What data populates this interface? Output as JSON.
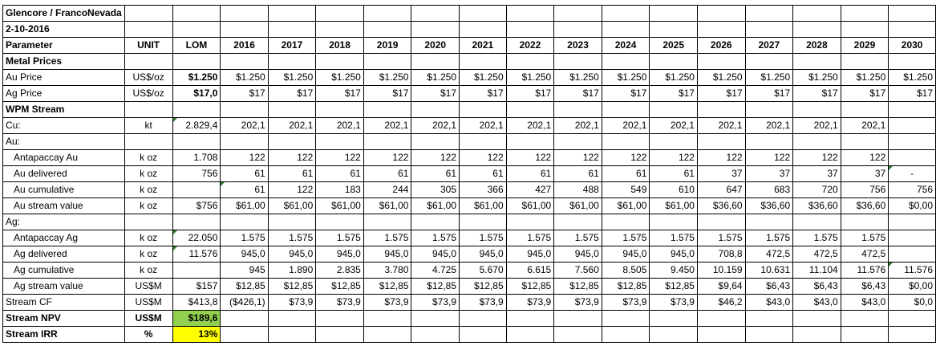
{
  "title": "Glencore / FrancoNevada",
  "date": "2-10-2016",
  "header": [
    "Parameter",
    "UNIT",
    "LOM",
    "2016",
    "2017",
    "2018",
    "2019",
    "2020",
    "2021",
    "2022",
    "2023",
    "2024",
    "2025",
    "2026",
    "2027",
    "2028",
    "2029",
    "2030"
  ],
  "rows": [
    {
      "label": "Metal Prices",
      "unit": "",
      "lom": "",
      "values": [],
      "bold": true,
      "section": true
    },
    {
      "label": "Au Price",
      "unit": "US$/oz",
      "lom": "$1.250",
      "lom_bold": true,
      "values": [
        "$1.250",
        "$1.250",
        "$1.250",
        "$1.250",
        "$1.250",
        "$1.250",
        "$1.250",
        "$1.250",
        "$1.250",
        "$1.250",
        "$1.250",
        "$1.250",
        "$1.250",
        "$1.250",
        "$1.250"
      ]
    },
    {
      "label": "Ag Price",
      "unit": "US$/oz",
      "lom": "$17,0",
      "lom_bold": true,
      "values": [
        "$17",
        "$17",
        "$17",
        "$17",
        "$17",
        "$17",
        "$17",
        "$17",
        "$17",
        "$17",
        "$17",
        "$17",
        "$17",
        "$17",
        "$17"
      ]
    },
    {
      "label": "WPM Stream",
      "unit": "",
      "lom": "",
      "values": [],
      "bold": true,
      "section": true
    },
    {
      "label": "Cu:",
      "unit": "kt",
      "lom": "2.829,4",
      "lom_marker": true,
      "values": [
        "202,1",
        "202,1",
        "202,1",
        "202,1",
        "202,1",
        "202,1",
        "202,1",
        "202,1",
        "202,1",
        "202,1",
        "202,1",
        "202,1",
        "202,1",
        "202,1",
        ""
      ]
    },
    {
      "label": "Au:",
      "unit": "",
      "lom": "",
      "values": [],
      "section": true
    },
    {
      "label": "Antapaccay Au",
      "unit": "k oz",
      "lom": "1.708",
      "indent": true,
      "values": [
        "122",
        "122",
        "122",
        "122",
        "122",
        "122",
        "122",
        "122",
        "122",
        "122",
        "122",
        "122",
        "122",
        "122",
        ""
      ]
    },
    {
      "label": "Au delivered",
      "unit": "k oz",
      "lom": "756",
      "indent": true,
      "values": [
        "61",
        "61",
        "61",
        "61",
        "61",
        "61",
        "61",
        "61",
        "61",
        "61",
        "37",
        "37",
        "37",
        "37",
        "-"
      ],
      "marker_col": 14
    },
    {
      "label": "Au cumulative",
      "unit": "k oz",
      "lom": "",
      "indent": true,
      "values": [
        "61",
        "122",
        "183",
        "244",
        "305",
        "366",
        "427",
        "488",
        "549",
        "610",
        "647",
        "683",
        "720",
        "756",
        "756"
      ],
      "marker_col": 0
    },
    {
      "label": "Au stream value",
      "unit": "k oz",
      "lom": "$756",
      "indent": true,
      "values": [
        "$61,00",
        "$61,00",
        "$61,00",
        "$61,00",
        "$61,00",
        "$61,00",
        "$61,00",
        "$61,00",
        "$61,00",
        "$61,00",
        "$36,60",
        "$36,60",
        "$36,60",
        "$36,60",
        "$0,00"
      ]
    },
    {
      "label": "Ag:",
      "unit": "",
      "lom": "",
      "values": [],
      "section": true
    },
    {
      "label": "Antapaccay Ag",
      "unit": "k oz",
      "lom": "22.050",
      "lom_marker": true,
      "indent": true,
      "values": [
        "1.575",
        "1.575",
        "1.575",
        "1.575",
        "1.575",
        "1.575",
        "1.575",
        "1.575",
        "1.575",
        "1.575",
        "1.575",
        "1.575",
        "1.575",
        "1.575",
        ""
      ]
    },
    {
      "label": "Ag delivered",
      "unit": "k oz",
      "lom": "11.576",
      "lom_marker": true,
      "indent": true,
      "values": [
        "945,0",
        "945,0",
        "945,0",
        "945,0",
        "945,0",
        "945,0",
        "945,0",
        "945,0",
        "945,0",
        "945,0",
        "708,8",
        "472,5",
        "472,5",
        "472,5",
        ""
      ]
    },
    {
      "label": "Ag cumulative",
      "unit": "k oz",
      "lom": "",
      "indent": true,
      "values": [
        "945",
        "1.890",
        "2.835",
        "3.780",
        "4.725",
        "5.670",
        "6.615",
        "7.560",
        "8.505",
        "9.450",
        "10.159",
        "10.631",
        "11.104",
        "11.576",
        "11.576"
      ],
      "marker_col": 14
    },
    {
      "label": "Ag stream value",
      "unit": "US$M",
      "lom": "$157",
      "indent": true,
      "values": [
        "$12,85",
        "$12,85",
        "$12,85",
        "$12,85",
        "$12,85",
        "$12,85",
        "$12,85",
        "$12,85",
        "$12,85",
        "$12,85",
        "$9,64",
        "$6,43",
        "$6,43",
        "$6,43",
        "$0,00"
      ]
    },
    {
      "label": "Stream CF",
      "unit": "US$M",
      "lom": "$413,8",
      "values": [
        "($426,1)",
        "$73,9",
        "$73,9",
        "$73,9",
        "$73,9",
        "$73,9",
        "$73,9",
        "$73,9",
        "$73,9",
        "$73,9",
        "$46,2",
        "$43,0",
        "$43,0",
        "$43,0",
        "$0,0"
      ]
    },
    {
      "label": "Stream NPV",
      "unit": "US$M",
      "lom": "$189,6",
      "bold": true,
      "lom_bold": true,
      "lom_fill": "#92d050",
      "values": [],
      "unit_bold": true
    },
    {
      "label": "Stream IRR",
      "unit": "%",
      "lom": "13%",
      "bold": true,
      "lom_bold": true,
      "lom_fill": "#ffff00",
      "values": [],
      "unit_bold": true
    }
  ]
}
